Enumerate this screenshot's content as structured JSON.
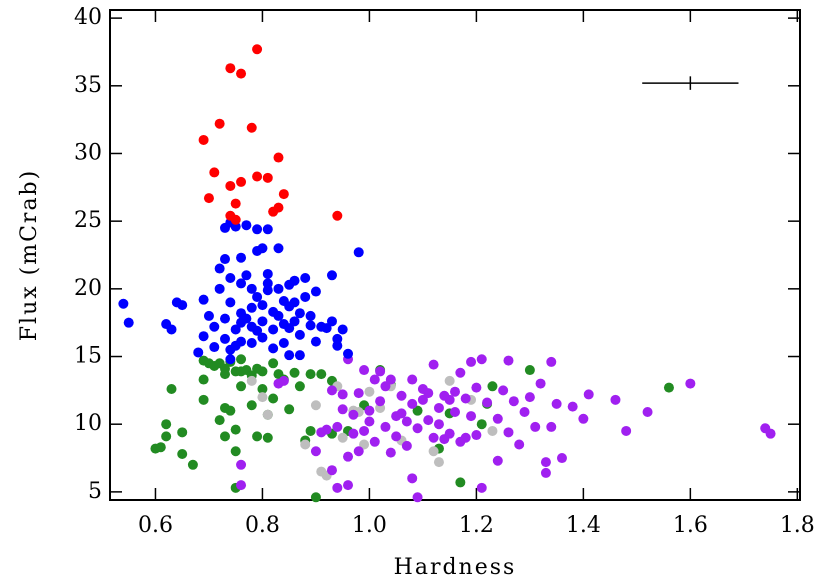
{
  "chart_data": {
    "type": "scatter",
    "xlabel": "Hardness",
    "ylabel": "Flux (mCrab)",
    "xlim": [
      0.515,
      1.805
    ],
    "ylim": [
      4.4,
      40.6
    ],
    "xticks": [
      0.6,
      0.8,
      {
        "value": 1.0,
        "label": "1.0"
      },
      1.2,
      1.4,
      1.6,
      1.8
    ],
    "yticks": [
      5,
      10,
      15,
      20,
      25,
      30,
      35,
      40
    ],
    "error_bar": {
      "x": 1.6,
      "y": 35.2,
      "xerr": 0.09,
      "yerr": 0.5
    },
    "series": [
      {
        "color": "#228b22",
        "x": [
          0.6,
          0.61,
          0.62,
          0.62,
          0.63,
          0.65,
          0.65,
          0.67,
          0.69,
          0.69,
          0.69,
          0.7,
          0.71,
          0.72,
          0.72,
          0.73,
          0.73,
          0.73,
          0.73,
          0.74,
          0.74,
          0.75,
          0.75,
          0.75,
          0.75,
          0.76,
          0.76,
          0.76,
          0.77,
          0.78,
          0.78,
          0.79,
          0.79,
          0.8,
          0.8,
          0.81,
          0.81,
          0.82,
          0.82,
          0.83,
          0.84,
          0.85,
          0.86,
          0.87,
          0.88,
          0.89,
          0.89,
          0.9,
          0.91,
          0.93,
          0.99,
          1.02,
          1.04,
          1.09,
          1.13,
          1.15,
          1.17,
          1.21,
          1.23,
          1.22,
          1.3,
          1.56,
          0.93,
          0.96
        ],
        "y": [
          8.2,
          8.3,
          9.1,
          10.0,
          12.6,
          9.4,
          7.8,
          7.0,
          11.8,
          13.3,
          14.7,
          14.5,
          14.3,
          10.3,
          14.5,
          14.1,
          13.7,
          11.2,
          9.1,
          14.6,
          11.0,
          8.0,
          13.9,
          5.3,
          9.6,
          14.8,
          13.9,
          12.8,
          14.0,
          13.6,
          11.4,
          14.1,
          9.1,
          13.9,
          12.6,
          10.7,
          9.0,
          14.5,
          11.9,
          13.7,
          13.3,
          11.1,
          13.8,
          12.8,
          8.8,
          13.7,
          9.5,
          4.6,
          13.7,
          13.2,
          11.4,
          14.0,
          12.9,
          11.0,
          8.2,
          10.8,
          5.7,
          10.0,
          12.8,
          11.5,
          14.0,
          12.7,
          9.3,
          9.5
        ]
      },
      {
        "color": "#bebebe",
        "x": [
          0.78,
          0.8,
          0.81,
          0.88,
          0.9,
          0.91,
          0.92,
          0.94,
          0.95,
          0.97,
          0.98,
          0.99,
          1.0,
          1.02,
          1.06,
          1.12,
          1.13,
          1.15,
          1.19,
          1.23,
          1.04
        ],
        "y": [
          13.2,
          12.0,
          10.7,
          8.5,
          11.4,
          6.5,
          6.2,
          12.8,
          9.0,
          11.0,
          10.9,
          8.5,
          12.4,
          11.2,
          8.8,
          8.0,
          7.2,
          13.2,
          11.8,
          9.5,
          12.8
        ]
      },
      {
        "color": "#a020f0",
        "x": [
          0.76,
          0.76,
          0.83,
          0.84,
          0.9,
          0.91,
          0.92,
          0.93,
          0.93,
          0.94,
          0.94,
          0.95,
          0.95,
          0.96,
          0.96,
          0.96,
          0.97,
          0.97,
          0.98,
          0.99,
          0.99,
          1.0,
          1.01,
          1.02,
          1.03,
          1.03,
          1.04,
          1.05,
          1.05,
          1.06,
          1.07,
          1.07,
          1.08,
          1.08,
          1.09,
          1.09,
          1.1,
          1.1,
          1.11,
          1.11,
          1.12,
          1.12,
          1.13,
          1.13,
          1.14,
          1.14,
          1.15,
          1.15,
          1.16,
          1.16,
          1.17,
          1.17,
          1.18,
          1.18,
          1.19,
          1.19,
          1.2,
          1.2,
          1.21,
          1.21,
          1.22,
          1.24,
          1.24,
          1.25,
          1.26,
          1.26,
          1.27,
          1.28,
          1.29,
          1.3,
          1.31,
          1.32,
          1.33,
          1.33,
          1.34,
          1.34,
          1.35,
          1.36,
          1.38,
          1.4,
          1.41,
          1.46,
          1.48,
          1.52,
          1.6,
          1.74,
          1.75,
          1.01,
          1.08,
          1.04,
          1.0,
          1.06,
          0.98,
          1.02
        ],
        "y": [
          7.0,
          5.5,
          13.0,
          13.2,
          8.0,
          9.4,
          9.6,
          12.5,
          6.6,
          5.3,
          9.8,
          12.2,
          11.1,
          7.6,
          5.5,
          14.8,
          9.3,
          10.7,
          12.3,
          9.5,
          14.0,
          10.2,
          8.7,
          11.7,
          9.8,
          12.8,
          13.3,
          10.6,
          9.1,
          12.1,
          10.2,
          8.4,
          11.5,
          13.3,
          9.7,
          4.6,
          12.6,
          11.8,
          10.3,
          12.3,
          14.4,
          9.0,
          11.2,
          10.0,
          12.1,
          8.9,
          11.8,
          9.3,
          10.9,
          12.4,
          8.7,
          13.8,
          9.0,
          11.9,
          10.6,
          14.6,
          9.2,
          12.7,
          5.3,
          14.8,
          11.6,
          7.3,
          10.4,
          12.5,
          14.7,
          9.4,
          11.7,
          8.5,
          10.9,
          12.0,
          9.8,
          13.0,
          6.4,
          7.2,
          9.8,
          14.6,
          11.5,
          7.5,
          11.3,
          10.4,
          12.2,
          11.8,
          9.5,
          10.9,
          13.0,
          9.7,
          9.3,
          13.3,
          6.0,
          7.9,
          11.0,
          10.8,
          8.0,
          13.9
        ]
      },
      {
        "color": "#0000ff",
        "x": [
          0.54,
          0.55,
          0.62,
          0.63,
          0.64,
          0.65,
          0.68,
          0.69,
          0.69,
          0.7,
          0.71,
          0.71,
          0.72,
          0.72,
          0.73,
          0.73,
          0.74,
          0.75,
          0.74,
          0.74,
          0.73,
          0.73,
          0.74,
          0.74,
          0.75,
          0.75,
          0.76,
          0.76,
          0.76,
          0.76,
          0.77,
          0.77,
          0.78,
          0.78,
          0.78,
          0.78,
          0.79,
          0.79,
          0.79,
          0.8,
          0.8,
          0.81,
          0.81,
          0.81,
          0.82,
          0.82,
          0.82,
          0.83,
          0.83,
          0.83,
          0.84,
          0.84,
          0.84,
          0.85,
          0.85,
          0.85,
          0.85,
          0.86,
          0.86,
          0.86,
          0.87,
          0.87,
          0.87,
          0.88,
          0.88,
          0.89,
          0.89,
          0.9,
          0.9,
          0.91,
          0.92,
          0.93,
          0.93,
          0.94,
          0.94,
          0.95,
          0.96,
          0.98,
          0.81,
          0.79,
          0.8,
          0.77,
          0.76,
          0.8
        ],
        "y": [
          18.9,
          17.5,
          17.4,
          17.0,
          19.0,
          18.8,
          15.3,
          16.5,
          19.2,
          18.0,
          17.2,
          15.7,
          20.0,
          21.5,
          22.2,
          24.5,
          24.9,
          24.6,
          20.8,
          19.0,
          17.8,
          16.3,
          15.5,
          14.8,
          15.8,
          17.0,
          17.5,
          18.2,
          20.4,
          22.3,
          24.7,
          21.0,
          20.0,
          18.6,
          17.2,
          16.0,
          19.4,
          22.8,
          24.4,
          17.6,
          16.4,
          24.4,
          21.1,
          19.9,
          18.3,
          17.0,
          15.6,
          23.0,
          20.0,
          18.0,
          19.1,
          17.4,
          16.0,
          20.3,
          18.7,
          17.1,
          15.1,
          20.6,
          19.0,
          17.6,
          18.2,
          16.6,
          15.1,
          20.8,
          19.4,
          18.0,
          17.3,
          19.8,
          16.1,
          17.2,
          17.1,
          21.0,
          17.6,
          16.3,
          15.8,
          17.0,
          15.2,
          22.7,
          20.4,
          16.9,
          23.0,
          17.8,
          16.1,
          18.8
        ]
      },
      {
        "color": "#ff0000",
        "x": [
          0.79,
          0.74,
          0.76,
          0.72,
          0.78,
          0.69,
          0.83,
          0.71,
          0.79,
          0.81,
          0.76,
          0.74,
          0.84,
          0.7,
          0.83,
          0.82,
          0.75,
          0.74,
          0.75,
          0.94
        ],
        "y": [
          37.7,
          36.3,
          35.9,
          32.2,
          31.9,
          31.0,
          29.7,
          28.6,
          28.3,
          28.2,
          27.9,
          27.6,
          27.0,
          26.7,
          26.0,
          25.7,
          26.3,
          25.4,
          25.1,
          25.4
        ]
      }
    ]
  }
}
